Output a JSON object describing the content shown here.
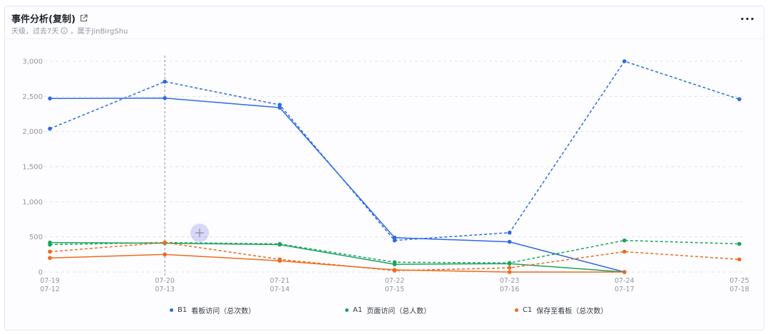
{
  "header": {
    "title": "事件分析(复制)",
    "granularity": "天级，过去7天",
    "owner": "，属于JinBirgShu"
  },
  "menu": {
    "more_label": "···"
  },
  "colors": {
    "blue": "#2d6ae3",
    "green": "#1aa45c",
    "orange": "#ef6a1a"
  },
  "chart_data": {
    "type": "line",
    "y_ticks": [
      "0",
      "500",
      "1,000",
      "1,500",
      "2,000",
      "2,500",
      "3,000"
    ],
    "ylim": [
      0,
      3100
    ],
    "grid": true,
    "legend_position": "bottom",
    "x_labels_current": [
      "07-19",
      "07-20",
      "07-21",
      "07-22",
      "07-23",
      "07-24",
      "07-25"
    ],
    "x_labels_previous": [
      "07-12",
      "07-13",
      "07-14",
      "07-15",
      "07-16",
      "07-17",
      "07-18"
    ],
    "series": [
      {
        "code": "B1",
        "name": "看板访问（总次数）",
        "color_key": "blue",
        "current": [
          2470,
          2475,
          2340,
          490,
          430,
          0,
          null
        ],
        "previous": [
          2040,
          2710,
          2380,
          450,
          560,
          3000,
          2460
        ]
      },
      {
        "code": "A1",
        "name": "页面访问（总人数）",
        "color_key": "green",
        "current": [
          420,
          410,
          390,
          110,
          120,
          0,
          null
        ],
        "previous": [
          390,
          420,
          400,
          140,
          130,
          450,
          400
        ]
      },
      {
        "code": "C1",
        "name": "保存至看板（总次数）",
        "color_key": "orange",
        "current": [
          200,
          250,
          160,
          30,
          0,
          0,
          null
        ],
        "previous": [
          290,
          420,
          180,
          20,
          60,
          290,
          180
        ]
      }
    ]
  }
}
